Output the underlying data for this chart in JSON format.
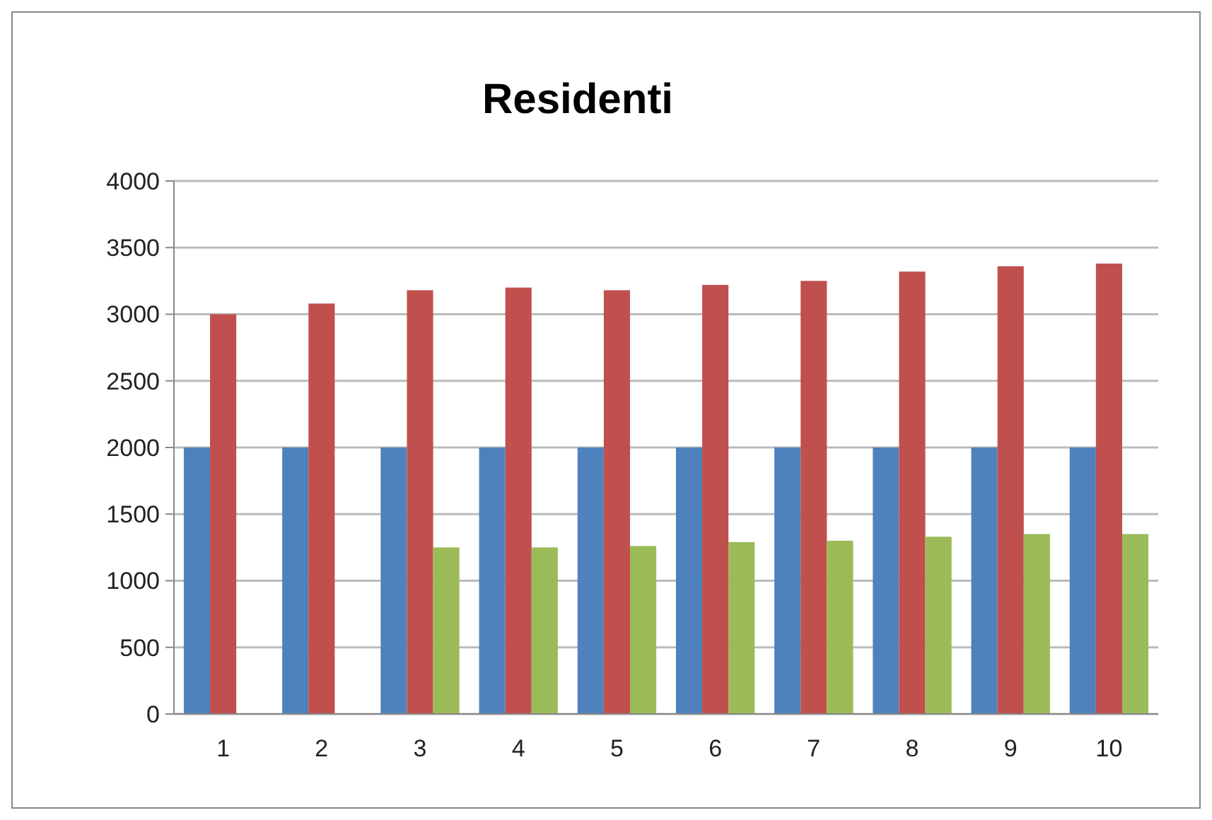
{
  "chart_data": {
    "type": "bar",
    "title": "Residenti",
    "categories": [
      "1",
      "2",
      "3",
      "4",
      "5",
      "6",
      "7",
      "8",
      "9",
      "10"
    ],
    "series": [
      {
        "color": "#4f81bd",
        "values": [
          2000,
          2000,
          2000,
          2000,
          2000,
          2000,
          2000,
          2000,
          2000,
          2000
        ]
      },
      {
        "color": "#c0504d",
        "values": [
          3000,
          3080,
          3180,
          3200,
          3180,
          3220,
          3250,
          3320,
          3360,
          3380
        ]
      },
      {
        "color": "#9bbb59",
        "values": [
          null,
          null,
          1250,
          1250,
          1260,
          1290,
          1300,
          1330,
          1350,
          1350
        ]
      }
    ],
    "ylim": [
      0,
      4000
    ],
    "yticks": [
      0,
      500,
      1000,
      1500,
      2000,
      2500,
      3000,
      3500,
      4000
    ],
    "grid": "y"
  }
}
